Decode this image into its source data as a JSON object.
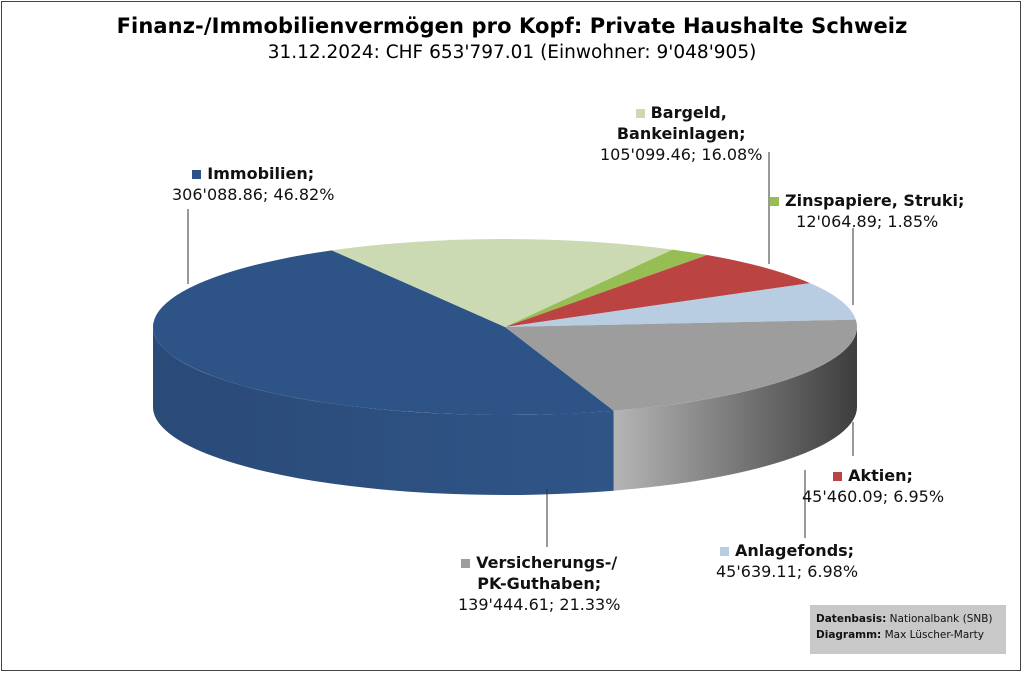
{
  "title": "Finanz-/Immobilienvermögen pro Kopf: Private Haushalte Schweiz",
  "subtitle": "31.12.2024: CHF 653'797.01 (Einwohner: 9'048'905)",
  "source": {
    "label1": "Datenbasis:",
    "value1": "Nationalbank (SNB)",
    "label2": "Diagramm:",
    "value2": "Max Lüscher-Marty"
  },
  "chart_data": {
    "type": "pie",
    "title": "Finanz-/Immobilienvermögen pro Kopf: Private Haushalte Schweiz",
    "subtitle": "31.12.2024: CHF 653'797.01 (Einwohner: 9'048'905)",
    "slices": [
      {
        "name": "Immobilien;",
        "value": 306088.86,
        "value_label": "306'088.86; 46.82%",
        "percent": 46.82,
        "color": "#2E5487"
      },
      {
        "name": "Bargeld, Bankeinlagen;",
        "name_line1": "Bargeld,",
        "name_line2": "Bankeinlagen;",
        "value": 105099.46,
        "value_label": "105'099.46; 16.08%",
        "percent": 16.08,
        "color": "#CBDAB2"
      },
      {
        "name": "Zinspapiere, Struki;",
        "value": 12064.89,
        "value_label": "12'064.89; 1.85%",
        "percent": 1.85,
        "color": "#96BE52"
      },
      {
        "name": "Aktien;",
        "value": 45460.09,
        "value_label": "45'460.09; 6.95%",
        "percent": 6.95,
        "color": "#BB4442"
      },
      {
        "name": "Anlagefonds;",
        "value": 45639.11,
        "value_label": "45'639.11; 6.98%",
        "percent": 6.98,
        "color": "#B8CCE2"
      },
      {
        "name": "Versicherungs-/ PK-Guthaben;",
        "name_line1": "Versicherungs-/",
        "name_line2": "PK-Guthaben;",
        "value": 139444.61,
        "value_label": "139'444.61; 21.33%",
        "percent": 21.33,
        "color": "#9D9D9D"
      }
    ],
    "legend": "none (labels on slices)"
  }
}
